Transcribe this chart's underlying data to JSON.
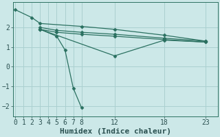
{
  "background_color": "#cce8e8",
  "grid_color": "#aad0d0",
  "line_color": "#2a7060",
  "xlabel": "Humidex (Indice chaleur)",
  "xlim": [
    -0.3,
    24.5
  ],
  "ylim": [
    -2.55,
    3.3
  ],
  "yticks": [
    -2,
    -1,
    0,
    1,
    2
  ],
  "xticks": [
    0,
    1,
    2,
    3,
    4,
    5,
    6,
    7,
    8,
    12,
    18,
    23
  ],
  "lines": [
    {
      "x": [
        0,
        2,
        3,
        8,
        12,
        18,
        23
      ],
      "y": [
        2.9,
        2.5,
        2.2,
        2.05,
        1.9,
        1.6,
        1.3
      ]
    },
    {
      "x": [
        3,
        5,
        8,
        12,
        18,
        23
      ],
      "y": [
        2.0,
        1.85,
        1.75,
        1.65,
        1.45,
        1.3
      ]
    },
    {
      "x": [
        3,
        5,
        8,
        12,
        18,
        23
      ],
      "y": [
        1.9,
        1.75,
        1.65,
        1.55,
        1.38,
        1.25
      ]
    },
    {
      "x": [
        3,
        5,
        6,
        7,
        8
      ],
      "y": [
        1.9,
        1.55,
        0.85,
        -1.1,
        -2.1
      ]
    },
    {
      "x": [
        3,
        12,
        18,
        23
      ],
      "y": [
        1.9,
        0.55,
        1.35,
        1.25
      ]
    }
  ],
  "marker": "D",
  "marker_size": 2.5,
  "line_width": 0.9,
  "font_color": "#2a5050",
  "tick_fontsize": 7,
  "xlabel_fontsize": 8
}
